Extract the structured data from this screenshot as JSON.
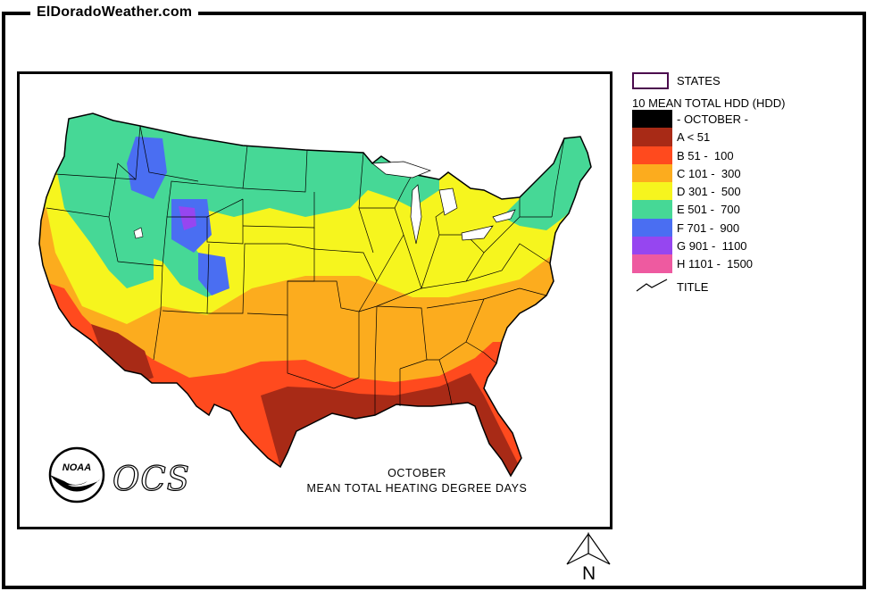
{
  "site": {
    "title": "ElDoradoWeather.com"
  },
  "map": {
    "caption_line1": "OCTOBER",
    "caption_line2": "MEAN TOTAL HEATING  DEGREE DAYS",
    "logo_noaa_text": "NOAA",
    "logo_ocs_text": "OCS"
  },
  "legend": {
    "states_label": "STATES",
    "title": "10 MEAN TOTAL HDD (HDD)",
    "items": [
      {
        "label": "- OCTOBER -",
        "color": "#000000"
      },
      {
        "label": "A < 51",
        "color": "#a82a16"
      },
      {
        "label": "B 51 -  100",
        "color": "#ff4a1e"
      },
      {
        "label": "C 101 -  300",
        "color": "#fcac1e"
      },
      {
        "label": "D 301 -  500",
        "color": "#f6f51e"
      },
      {
        "label": "E 501 -  700",
        "color": "#46d896"
      },
      {
        "label": "F 701 -  900",
        "color": "#4a6ef2"
      },
      {
        "label": "G 901 -  1100",
        "color": "#9646f0"
      },
      {
        "label": "H 1101 -  1500",
        "color": "#ee5aa0"
      }
    ],
    "title_line_label": "TITLE"
  },
  "north_arrow": {
    "label": "N"
  }
}
